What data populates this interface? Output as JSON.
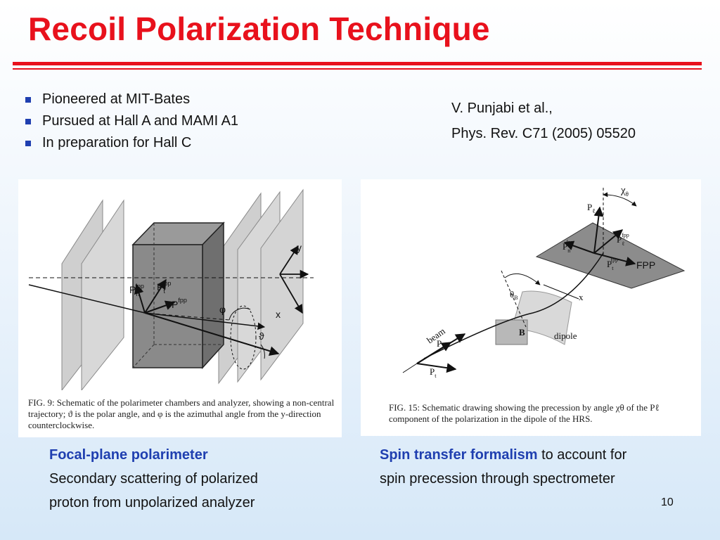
{
  "slide": {
    "title": "Recoil Polarization Technique",
    "page_number": "10"
  },
  "bullets": [
    "Pioneered at MIT-Bates",
    "Pursued at Hall A and MAMI A1",
    "In preparation for Hall C"
  ],
  "reference": {
    "authors": "V. Punjabi et al.,",
    "citation": "Phys. Rev. C71 (2005) 05520"
  },
  "figure_left": {
    "labels": {
      "y": "y",
      "x": "x",
      "pn": "P",
      "pn_sub": "n",
      "pn_sup": "fpp",
      "pt": "P",
      "pt_sub": "t",
      "pt_sup": "fpp",
      "p": "P",
      "p_sup": "fpp",
      "phi": "φ",
      "theta": "ϑ"
    },
    "caption": "FIG. 9: Schematic of the polarimeter chambers and analyzer, showing a non-central trajectory; ϑ is the polar angle, and φ is the azimuthal angle from the y-direction counterclockwise."
  },
  "figure_right": {
    "labels": {
      "xs": "χ",
      "xs_sub": "θ",
      "pl": "P",
      "pl_sub": "ℓ",
      "pn": "P",
      "pn_sub": "n",
      "pn_sup": "fpp",
      "pl2": "P",
      "pl2_sub": "ℓ",
      "pl2_sup": "fpp",
      "pt": "P",
      "pt_sub": "t",
      "pt_sup": "fpp",
      "fpp": "FPP",
      "thetab": "θ",
      "thetab_sub": "B",
      "x": "x",
      "dipole": "dipole",
      "b": "B",
      "beam": "beam",
      "pl3": "P",
      "pl3_sub": "ℓ",
      "pt3": "P",
      "pt3_sub": "t"
    },
    "caption": "FIG. 15: Schematic drawing showing the precession by angle χθ of the Pℓ component of the polarization in the dipole of the HRS."
  },
  "subtitles": {
    "left_heading": "Focal-plane polarimeter",
    "left_body_1": "Secondary scattering of polarized",
    "left_body_2": "proton from unpolarized analyzer",
    "right_heading": "Spin transfer formalism",
    "right_body_1": " to account for",
    "right_body_2": "spin precession through spectrometer"
  }
}
